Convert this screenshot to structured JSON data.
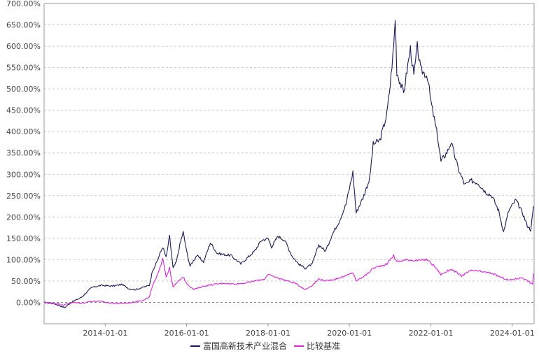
{
  "chart_data": {
    "type": "line",
    "title": "",
    "xlabel": "",
    "ylabel": "",
    "ylim": [
      -50,
      700
    ],
    "y_ticks": [
      0,
      50,
      100,
      150,
      200,
      250,
      300,
      350,
      400,
      450,
      500,
      550,
      600,
      650,
      700
    ],
    "y_tick_labels": [
      "0.00%",
      "50.00%",
      "100.00%",
      "150.00%",
      "200.00%",
      "250.00%",
      "300.00%",
      "350.00%",
      "400.00%",
      "450.00%",
      "500.00%",
      "550.00%",
      "600.00%",
      "650.00%",
      "700.00%"
    ],
    "x_range": [
      "2012-07-01",
      "2024-07-15"
    ],
    "x_ticks": [
      "2014-01-01",
      "2016-01-01",
      "2018-01-01",
      "2020-01-01",
      "2022-01-01",
      "2024-01-01"
    ],
    "grid": true,
    "legend_position": "bottom-center",
    "series": [
      {
        "name": "富国高新技术产业混合",
        "color": "#1a1a5e",
        "points": [
          [
            "2012-07-01",
            0
          ],
          [
            "2012-10-01",
            -3
          ],
          [
            "2013-01-01",
            -12
          ],
          [
            "2013-03-01",
            0
          ],
          [
            "2013-06-01",
            12
          ],
          [
            "2013-09-01",
            35
          ],
          [
            "2013-12-01",
            40
          ],
          [
            "2014-03-01",
            38
          ],
          [
            "2014-06-01",
            42
          ],
          [
            "2014-08-01",
            32
          ],
          [
            "2014-10-01",
            30
          ],
          [
            "2014-12-01",
            35
          ],
          [
            "2015-02-01",
            40
          ],
          [
            "2015-03-01",
            75
          ],
          [
            "2015-04-01",
            90
          ],
          [
            "2015-05-01",
            110
          ],
          [
            "2015-06-01",
            130
          ],
          [
            "2015-07-01",
            105
          ],
          [
            "2015-08-01",
            155
          ],
          [
            "2015-09-01",
            80
          ],
          [
            "2015-10-01",
            95
          ],
          [
            "2015-11-01",
            135
          ],
          [
            "2015-12-01",
            165
          ],
          [
            "2016-01-01",
            120
          ],
          [
            "2016-02-01",
            85
          ],
          [
            "2016-04-01",
            110
          ],
          [
            "2016-06-01",
            95
          ],
          [
            "2016-08-01",
            140
          ],
          [
            "2016-10-01",
            115
          ],
          [
            "2016-12-01",
            112
          ],
          [
            "2017-02-01",
            110
          ],
          [
            "2017-05-01",
            90
          ],
          [
            "2017-07-01",
            105
          ],
          [
            "2017-09-01",
            120
          ],
          [
            "2017-11-01",
            145
          ],
          [
            "2018-01-01",
            150
          ],
          [
            "2018-02-01",
            130
          ],
          [
            "2018-04-01",
            155
          ],
          [
            "2018-06-01",
            145
          ],
          [
            "2018-08-01",
            110
          ],
          [
            "2018-10-01",
            90
          ],
          [
            "2018-12-01",
            80
          ],
          [
            "2019-02-01",
            90
          ],
          [
            "2019-04-01",
            135
          ],
          [
            "2019-06-01",
            120
          ],
          [
            "2019-08-01",
            160
          ],
          [
            "2019-10-01",
            190
          ],
          [
            "2019-12-01",
            230
          ],
          [
            "2020-02-01",
            305
          ],
          [
            "2020-03-01",
            210
          ],
          [
            "2020-05-01",
            245
          ],
          [
            "2020-07-01",
            290
          ],
          [
            "2020-08-01",
            370
          ],
          [
            "2020-10-01",
            380
          ],
          [
            "2020-12-01",
            440
          ],
          [
            "2021-01-01",
            510
          ],
          [
            "2021-02-01",
            600
          ],
          [
            "2021-02-15",
            665
          ],
          [
            "2021-03-01",
            540
          ],
          [
            "2021-05-01",
            490
          ],
          [
            "2021-07-01",
            595
          ],
          [
            "2021-08-01",
            530
          ],
          [
            "2021-09-01",
            600
          ],
          [
            "2021-10-01",
            545
          ],
          [
            "2021-12-01",
            530
          ],
          [
            "2022-01-01",
            470
          ],
          [
            "2022-03-01",
            390
          ],
          [
            "2022-04-01",
            330
          ],
          [
            "2022-06-01",
            355
          ],
          [
            "2022-07-01",
            375
          ],
          [
            "2022-09-01",
            315
          ],
          [
            "2022-11-01",
            275
          ],
          [
            "2023-01-01",
            285
          ],
          [
            "2023-03-01",
            280
          ],
          [
            "2023-05-01",
            260
          ],
          [
            "2023-07-01",
            250
          ],
          [
            "2023-09-01",
            215
          ],
          [
            "2023-10-15",
            165
          ],
          [
            "2023-12-01",
            215
          ],
          [
            "2024-02-01",
            240
          ],
          [
            "2024-04-01",
            210
          ],
          [
            "2024-05-15",
            180
          ],
          [
            "2024-06-15",
            170
          ],
          [
            "2024-07-10",
            225
          ]
        ]
      },
      {
        "name": "比较基准",
        "color": "#e020e0",
        "points": [
          [
            "2012-07-01",
            0
          ],
          [
            "2012-10-01",
            -2
          ],
          [
            "2013-01-01",
            -6
          ],
          [
            "2013-03-01",
            0
          ],
          [
            "2013-06-01",
            -2
          ],
          [
            "2013-09-01",
            3
          ],
          [
            "2013-12-01",
            2
          ],
          [
            "2014-03-01",
            -2
          ],
          [
            "2014-06-01",
            -3
          ],
          [
            "2014-09-01",
            0
          ],
          [
            "2014-12-01",
            5
          ],
          [
            "2015-02-01",
            12
          ],
          [
            "2015-03-01",
            40
          ],
          [
            "2015-04-01",
            55
          ],
          [
            "2015-05-01",
            75
          ],
          [
            "2015-06-01",
            105
          ],
          [
            "2015-07-01",
            60
          ],
          [
            "2015-08-01",
            80
          ],
          [
            "2015-09-01",
            35
          ],
          [
            "2015-10-01",
            45
          ],
          [
            "2015-12-01",
            60
          ],
          [
            "2016-01-01",
            45
          ],
          [
            "2016-03-01",
            30
          ],
          [
            "2016-06-01",
            38
          ],
          [
            "2016-09-01",
            42
          ],
          [
            "2016-12-01",
            45
          ],
          [
            "2017-03-01",
            43
          ],
          [
            "2017-06-01",
            45
          ],
          [
            "2017-09-01",
            50
          ],
          [
            "2017-12-01",
            55
          ],
          [
            "2018-01-01",
            65
          ],
          [
            "2018-03-01",
            60
          ],
          [
            "2018-06-01",
            52
          ],
          [
            "2018-09-01",
            45
          ],
          [
            "2018-12-01",
            30
          ],
          [
            "2019-02-01",
            40
          ],
          [
            "2019-04-01",
            55
          ],
          [
            "2019-06-01",
            50
          ],
          [
            "2019-09-01",
            55
          ],
          [
            "2019-12-01",
            62
          ],
          [
            "2020-02-01",
            70
          ],
          [
            "2020-03-01",
            50
          ],
          [
            "2020-06-01",
            65
          ],
          [
            "2020-08-01",
            80
          ],
          [
            "2020-12-01",
            90
          ],
          [
            "2021-02-01",
            110
          ],
          [
            "2021-03-01",
            95
          ],
          [
            "2021-06-01",
            100
          ],
          [
            "2021-09-01",
            98
          ],
          [
            "2021-12-01",
            100
          ],
          [
            "2022-02-01",
            85
          ],
          [
            "2022-04-01",
            65
          ],
          [
            "2022-07-01",
            78
          ],
          [
            "2022-10-01",
            62
          ],
          [
            "2023-01-01",
            75
          ],
          [
            "2023-04-01",
            72
          ],
          [
            "2023-07-01",
            68
          ],
          [
            "2023-10-01",
            58
          ],
          [
            "2023-12-01",
            52
          ],
          [
            "2024-02-01",
            55
          ],
          [
            "2024-04-01",
            58
          ],
          [
            "2024-06-01",
            48
          ],
          [
            "2024-07-01",
            42
          ],
          [
            "2024-07-10",
            68
          ]
        ]
      }
    ]
  }
}
